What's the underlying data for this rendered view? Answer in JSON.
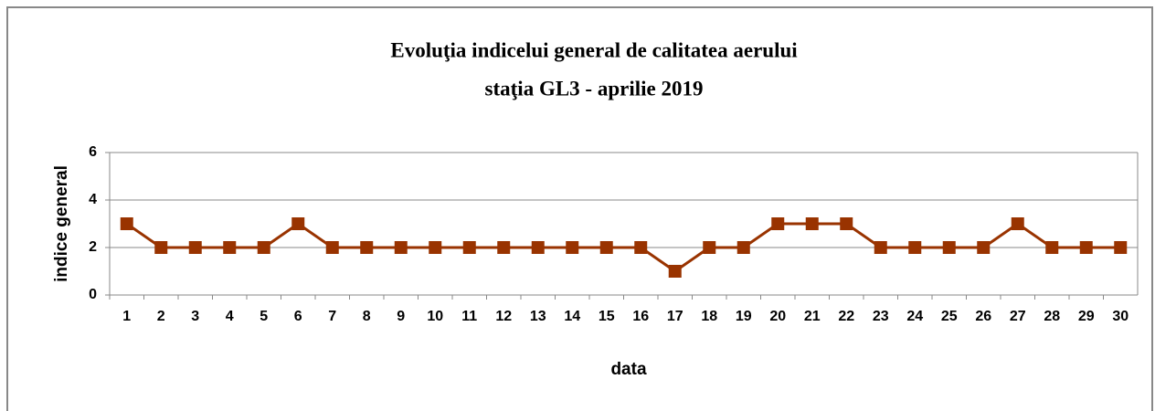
{
  "chart_data": {
    "type": "line",
    "title": "Evoluţia indicelui general de calitatea aerului",
    "subtitle": "staţia GL3 - aprilie 2019",
    "x_label": "data",
    "y_label": "indice general",
    "categories": [
      "1",
      "2",
      "3",
      "4",
      "5",
      "6",
      "7",
      "8",
      "9",
      "10",
      "11",
      "12",
      "13",
      "14",
      "15",
      "16",
      "17",
      "18",
      "19",
      "20",
      "21",
      "22",
      "23",
      "24",
      "25",
      "26",
      "27",
      "28",
      "29",
      "30"
    ],
    "series": [
      {
        "name": "indice general",
        "color": "#993300",
        "values": [
          3,
          2,
          2,
          2,
          2,
          3,
          2,
          2,
          2,
          2,
          2,
          2,
          2,
          2,
          2,
          2,
          1,
          2,
          2,
          3,
          3,
          3,
          2,
          2,
          2,
          2,
          3,
          2,
          2,
          2
        ]
      }
    ],
    "ylim": [
      0,
      6
    ],
    "yticks": [
      0,
      2,
      4,
      6
    ],
    "grid": true,
    "legend": false
  }
}
